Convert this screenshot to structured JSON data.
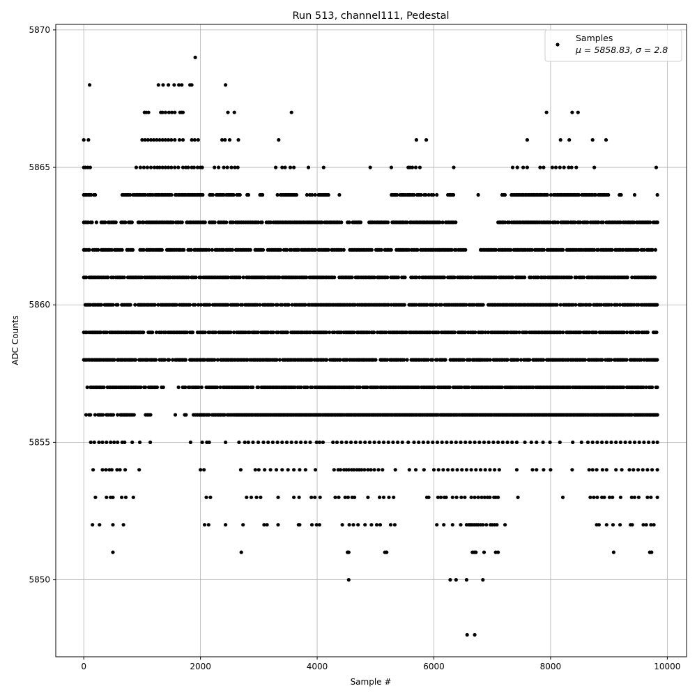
{
  "chart_data": {
    "type": "scatter",
    "title": "Run 513, channel111, Pedestal",
    "xlabel": "Sample #",
    "ylabel": "ADC Counts",
    "xlim": [
      -480,
      10330
    ],
    "ylim": [
      5847.2,
      5870.2
    ],
    "xticks": [
      0,
      2000,
      4000,
      6000,
      8000,
      10000
    ],
    "yticks": [
      5850,
      5855,
      5860,
      5865,
      5870
    ],
    "grid": true,
    "legend": {
      "placement": "top-right",
      "entries": [
        {
          "label": "Samples",
          "stats": "μ = 5858.83, σ = 2.8"
        }
      ]
    },
    "marker_color": "#000000",
    "series": [
      {
        "name": "Samples",
        "x_range": [
          0,
          9840
        ],
        "value_density": [
          {
            "y": 5848,
            "x": [
              6570,
              6700
            ]
          },
          {
            "y": 5850,
            "x": [
              4540,
              6280,
              6380,
              6560,
              6840
            ]
          },
          {
            "y": 5851,
            "x": [
              500,
              2700,
              4520,
              4540,
              5160,
              5190,
              6660,
              6690,
              6720,
              6860,
              7060,
              7100,
              9080,
              9700,
              9730
            ]
          },
          {
            "y": 5852,
            "x": [
              150,
              270,
              500,
              680,
              2070,
              2140,
              2430,
              2730,
              3090,
              3140,
              3330,
              3680,
              3700,
              3910,
              3990,
              4040,
              4430,
              4550,
              4620,
              4700,
              4820,
              4930,
              5020,
              5080,
              5260,
              5330,
              6050,
              6170,
              6320,
              6460,
              6560,
              6600,
              6620,
              6640,
              6670,
              6700,
              6730,
              6760,
              6800,
              6840,
              6900,
              6970,
              7000,
              7040,
              7080,
              7220,
              8790,
              8830,
              8960,
              9070,
              9190,
              9370,
              9400,
              9590,
              9640,
              9720,
              9770
            ]
          },
          {
            "y": 5853,
            "x": [
              200,
              390,
              460,
              500,
              650,
              720,
              850,
              2100,
              2170,
              2790,
              2870,
              2960,
              3030,
              3330,
              3600,
              3690,
              3900,
              3960,
              4050,
              4310,
              4370,
              4480,
              4530,
              4600,
              4640,
              4870,
              5070,
              5140,
              5230,
              5310,
              5880,
              5910,
              6070,
              6120,
              6180,
              6210,
              6320,
              6390,
              6470,
              6530,
              6640,
              6700,
              6760,
              6820,
              6870,
              6920,
              6960,
              7030,
              7060,
              7100,
              7440,
              8210,
              8680,
              8740,
              8800,
              8880,
              8920,
              9010,
              9060,
              9200,
              9390,
              9440,
              9510,
              9660,
              9720,
              9830
            ]
          },
          {
            "y": 5854,
            "x": [
              160,
              320,
              380,
              440,
              480,
              570,
              620,
              710,
              950,
              2000,
              2060,
              2690,
              2940,
              3000,
              3100,
              3200,
              3300,
              3400,
              3500,
              3600,
              3700,
              3800,
              3970,
              4290,
              4360,
              4400,
              4460,
              4500,
              4540,
              4590,
              4630,
              4680,
              4720,
              4760,
              4810,
              4870,
              4920,
              4980,
              5050,
              5120,
              5340,
              5580,
              5690,
              5830,
              6000,
              6080,
              6160,
              6240,
              6320,
              6400,
              6480,
              6560,
              6640,
              6720,
              6800,
              6880,
              6960,
              7040,
              7120,
              7420,
              7690,
              7760,
              7880,
              8000,
              8370,
              8660,
              8720,
              8790,
              8890,
              8960,
              9120,
              9220,
              9350,
              9420,
              9500,
              9580,
              9660,
              9740,
              9830
            ]
          },
          {
            "y": 5855,
            "x": [
              120,
              180,
              260,
              320,
              390,
              460,
              520,
              580,
              660,
              700,
              830,
              960,
              1140,
              1830,
              2030,
              2110,
              2150,
              2430,
              2660,
              2760,
              2820,
              2900,
              2990,
              3080,
              3160,
              3240,
              3320,
              3400,
              3480,
              3560,
              3640,
              3720,
              3800,
              3880,
              3990,
              4040,
              4100,
              4270,
              4340,
              4420,
              4500,
              4580,
              4660,
              4740,
              4820,
              4900,
              4980,
              5060,
              5140,
              5220,
              5300,
              5380,
              5460,
              5560,
              5660,
              5740,
              5820,
              5900,
              5980,
              6060,
              6140,
              6220,
              6300,
              6380,
              6460,
              6540,
              6620,
              6700,
              6780,
              6860,
              6940,
              7020,
              7100,
              7180,
              7260,
              7340,
              7420,
              7560,
              7670,
              7760,
              7870,
              7990,
              8160,
              8380,
              8530,
              8640,
              8720,
              8800,
              8880,
              8960,
              9040,
              9120,
              9200,
              9280,
              9360,
              9440,
              9520,
              9600,
              9680,
              9760,
              9830
            ]
          },
          {
            "y": 5856,
            "x_span": [
              [
                40,
                890
              ],
              [
                1060,
                1160
              ],
              [
                1430,
                1450
              ],
              [
                1550,
                1580
              ],
              [
                1730,
                1760
              ],
              [
                1880,
                10000
              ],
              [
                1930,
                2150
              ],
              [
                2230,
                2440
              ],
              [
                2620,
                9840
              ]
            ]
          },
          {
            "y": 5857,
            "x_span": [
              [
                60,
                1260
              ],
              [
                1310,
                1380
              ],
              [
                1600,
                2030
              ],
              [
                2100,
                2340
              ],
              [
                2390,
                9840
              ]
            ]
          },
          {
            "y": 5858,
            "x_span": [
              [
                0,
                1760
              ],
              [
                1820,
                9840
              ]
            ]
          },
          {
            "y": 5859,
            "x_span": [
              [
                0,
                1880
              ],
              [
                1950,
                9840
              ]
            ]
          },
          {
            "y": 5860,
            "x_span": [
              [
                0,
                9840
              ]
            ]
          },
          {
            "y": 5861,
            "x_span": [
              [
                0,
                6600
              ],
              [
                6640,
                9840
              ]
            ]
          },
          {
            "y": 5862,
            "x_span": [
              [
                0,
                670
              ],
              [
                740,
                2150
              ],
              [
                2200,
                4460
              ],
              [
                4560,
                6550
              ],
              [
                6800,
                9840
              ]
            ]
          },
          {
            "y": 5863,
            "x_span": [
              [
                0,
                240
              ],
              [
                300,
                560
              ],
              [
                640,
                2250
              ],
              [
                2310,
                3060
              ],
              [
                3130,
                4430
              ],
              [
                4520,
                4760
              ],
              [
                4890,
                6400
              ],
              [
                7100,
                9840
              ]
            ]
          },
          {
            "y": 5864,
            "x_span": [
              [
                0,
                200
              ],
              [
                660,
                2060
              ],
              [
                2140,
                2700
              ],
              [
                2800,
                2840
              ],
              [
                3020,
                3080
              ],
              [
                3320,
                3680
              ],
              [
                3800,
                4200
              ],
              [
                4380,
                4380
              ],
              [
                5250,
                5920
              ],
              [
                5960,
                6070
              ],
              [
                6240,
                6360
              ],
              [
                6760,
                6760
              ],
              [
                7170,
                7250
              ],
              [
                7330,
                8780
              ],
              [
                8820,
                9010
              ],
              [
                9180,
                9220
              ],
              [
                9440,
                9450
              ],
              [
                9830,
                9840
              ]
            ]
          },
          {
            "y": 5865,
            "x": [
              0,
              30,
              70,
              110,
              900,
              970,
              1030,
              1090,
              1150,
              1210,
              1260,
              1300,
              1350,
              1400,
              1450,
              1500,
              1560,
              1620,
              1700,
              1750,
              1790,
              1850,
              1890,
              1950,
              2000,
              2030,
              2240,
              2310,
              2400,
              2460,
              2530,
              2590,
              2640,
              3290,
              3400,
              3450,
              3540,
              3600,
              3850,
              4110,
              4910,
              5270,
              5560,
              5590,
              5630,
              5690,
              5760,
              6340,
              7350,
              7430,
              7530,
              7600,
              7820,
              7880,
              8030,
              8090,
              8160,
              8230,
              8310,
              8360,
              8440,
              8750,
              9810
            ]
          },
          {
            "y": 5866,
            "x": [
              0,
              80,
              1000,
              1050,
              1100,
              1150,
              1200,
              1250,
              1300,
              1350,
              1400,
              1450,
              1500,
              1560,
              1640,
              1700,
              1850,
              1900,
              1960,
              2370,
              2420,
              2500,
              2650,
              3340,
              5700,
              5870,
              7600,
              8170,
              8320,
              8720,
              8950
            ]
          },
          {
            "y": 5867,
            "x": [
              1040,
              1070,
              1110,
              1320,
              1350,
              1400,
              1460,
              1510,
              1560,
              1650,
              1680,
              1700,
              2470,
              2580,
              3560,
              7930,
              8370,
              8470
            ]
          },
          {
            "y": 5868,
            "x": [
              100,
              1280,
              1360,
              1450,
              1550,
              1630,
              1680,
              1820,
              1850,
              2430
            ]
          },
          {
            "y": 5869,
            "x": [
              1910
            ]
          }
        ]
      }
    ]
  }
}
